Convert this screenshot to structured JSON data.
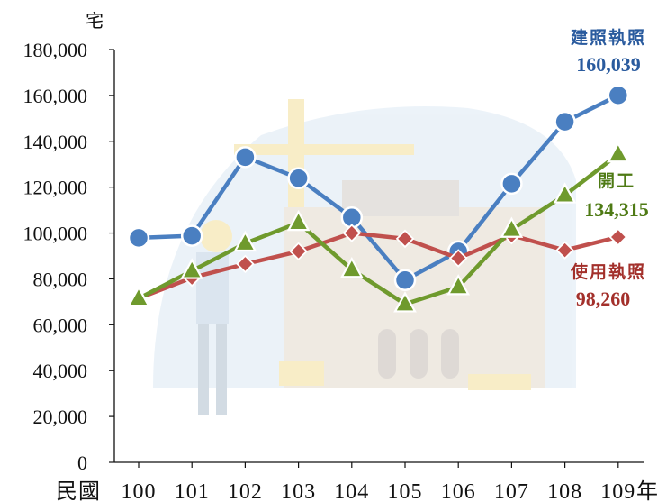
{
  "chart_data": {
    "type": "line",
    "ylabel": "宅",
    "x_prefix": "民國",
    "x_suffix": "年",
    "categories": [
      "100",
      "101",
      "102",
      "103",
      "104",
      "105",
      "106",
      "107",
      "108",
      "109"
    ],
    "ylim": [
      0,
      180000
    ],
    "yticks": [
      "0",
      "20,000",
      "40,000",
      "60,000",
      "80,000",
      "100,000",
      "120,000",
      "140,000",
      "160,000",
      "180,000"
    ],
    "grid": false,
    "series": [
      {
        "name": "建照執照",
        "end_label": "160,039",
        "color": "#4a7fc1",
        "marker": "circle",
        "values": [
          97900,
          98800,
          133100,
          123900,
          106800,
          79500,
          92000,
          121500,
          148500,
          160039
        ]
      },
      {
        "name": "開工",
        "end_label": "134,315",
        "color": "#6f9a2d",
        "marker": "triangle",
        "values": [
          71500,
          83500,
          95500,
          104500,
          84000,
          69000,
          76500,
          101500,
          116500,
          134315
        ]
      },
      {
        "name": "使用執照",
        "end_label": "98,260",
        "color": "#c0504d",
        "marker": "diamond",
        "values": [
          71500,
          80500,
          86500,
          92000,
          100000,
          97500,
          89000,
          99000,
          92500,
          98260
        ]
      }
    ],
    "label_colors": [
      "#2a5b9e",
      "#4e7a14",
      "#a3302b"
    ]
  }
}
